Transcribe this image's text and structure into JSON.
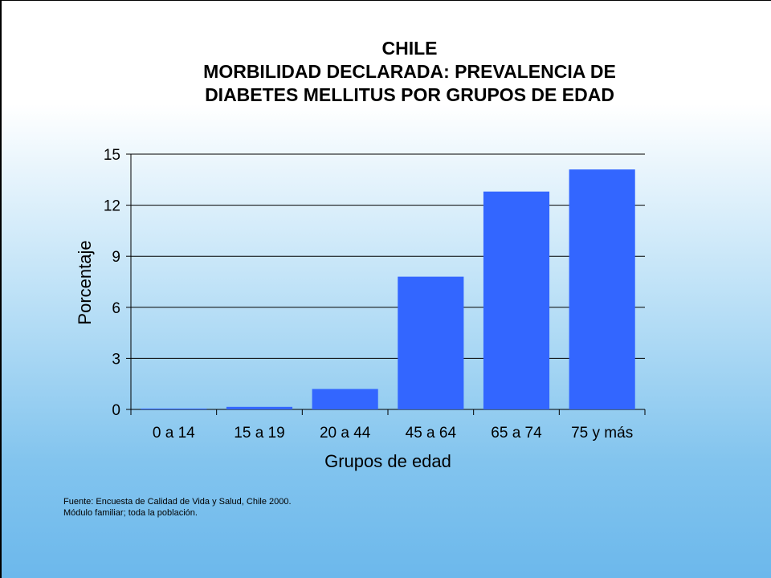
{
  "title_lines": [
    "CHILE",
    "MORBILIDAD DECLARADA: PREVALENCIA DE",
    "DIABETES MELLITUS POR GRUPOS DE EDAD"
  ],
  "source_lines": [
    "Fuente: Encuesta de Calidad de Vida y Salud, Chile 2000.",
    "Módulo familiar; toda la población."
  ],
  "colors": {
    "bar": "#3366ff",
    "grid": "#000000"
  },
  "chart_data": {
    "type": "bar",
    "title": "CHILE MORBILIDAD DECLARADA: PREVALENCIA DE DIABETES MELLITUS POR GRUPOS DE EDAD",
    "xlabel": "Grupos de edad",
    "ylabel": "Porcentaje",
    "categories": [
      "0 a 14",
      "15 a 19",
      "20 a 44",
      "45 a 64",
      "65 a 74",
      "75 y más"
    ],
    "values": [
      0.05,
      0.15,
      1.2,
      7.8,
      12.8,
      14.1
    ],
    "ylim": [
      0,
      15
    ],
    "yticks": [
      0,
      3,
      6,
      9,
      12,
      15
    ],
    "grid": true,
    "legend": "none"
  }
}
